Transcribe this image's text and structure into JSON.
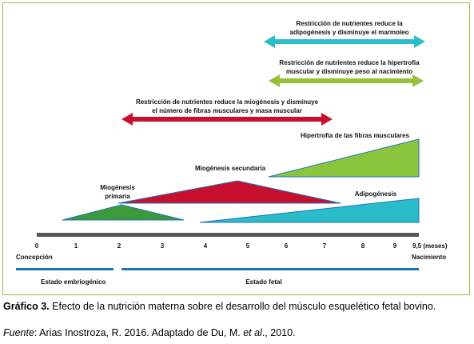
{
  "diagram": {
    "arrows": [
      {
        "id": "arrow-adipogenesis",
        "lines": [
          "Restricción de nutrientes reduce la",
          "adipogénesis y disminuye el marmoleo"
        ],
        "color": "#2bbcc9"
      },
      {
        "id": "arrow-hypertrophy",
        "lines": [
          "Restricción de nutrientes reduce la hipertrofia",
          "muscular  y disminuye peso al nacimiento"
        ],
        "color": "#94c23c"
      },
      {
        "id": "arrow-myogenesis",
        "lines": [
          "Restricción de nutrientes reduce la miogénesis y disminuye",
          "el número de fibras musculares y masa muscular"
        ],
        "color": "#c8102e"
      }
    ],
    "phases": [
      {
        "id": "fiber-hypertrophy",
        "label": "Hipertrofia de las fibras musculares",
        "color": "#8cc63f"
      },
      {
        "id": "secondary-myogenesis",
        "label": "Miogénesis secundaria",
        "color": "#c8102e"
      },
      {
        "id": "primary-myogenesis",
        "label_lines": [
          "Miogénesis",
          "primaria"
        ],
        "color": "#3c9a3a"
      },
      {
        "id": "adipogenesis",
        "label": "Adipogénesis",
        "color": "#2bbcc9"
      }
    ],
    "axis": {
      "ticks": [
        "0",
        "1",
        "2",
        "3",
        "4",
        "5",
        "6",
        "7",
        "8",
        "9",
        "9,5 (meses)"
      ],
      "start_label": "Concepción",
      "end_label": "Nacimiento",
      "bar_color": "#555555"
    },
    "stages": [
      {
        "id": "embryonic",
        "label": "Estado embriogénico",
        "color": "#1e73b8"
      },
      {
        "id": "fetal",
        "label": "Estado fetal",
        "color": "#1e73b8"
      }
    ]
  },
  "caption": {
    "label": "Gráfico 3.",
    "text": " Efecto de la nutrición materna sobre el desarrollo del músculo esquelético fetal bovino.",
    "source_label": "Fuente",
    "source_text_a": ": Arias Inostroza, R. 2016. Adaptado de Du, M. ",
    "source_etal": "et al",
    "source_text_b": "., 2010."
  }
}
